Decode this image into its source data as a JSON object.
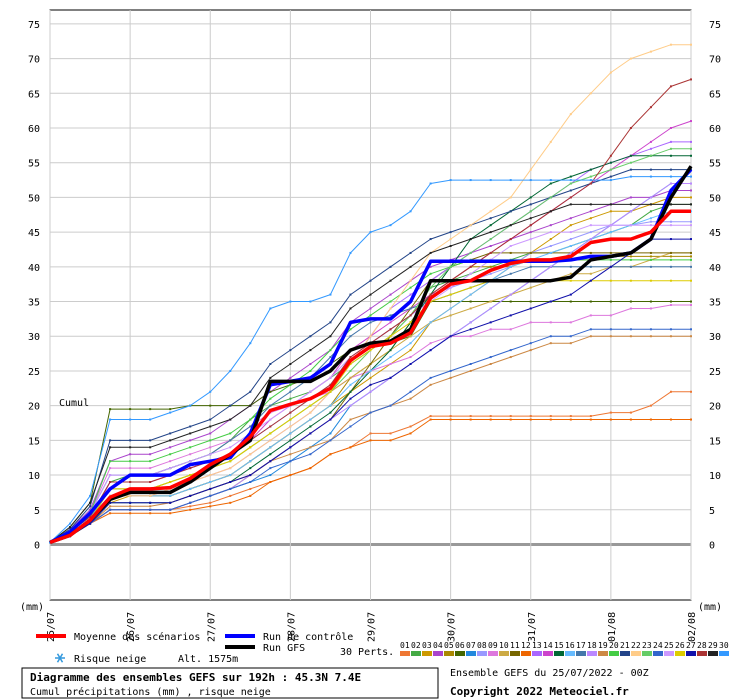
{
  "chart_data": {
    "type": "line",
    "title": "Diagramme des ensembles GEFS sur 192h : 45.3N 7.4E",
    "subtitle": "Cumul précipitations (mm) , risque neige",
    "ylabel": "(mm)",
    "ylabel_right": "(mm)",
    "series_label": "Cumul",
    "ylim": [
      -8,
      77
    ],
    "yticks": [
      0,
      5,
      10,
      15,
      20,
      25,
      30,
      35,
      40,
      45,
      50,
      55,
      60,
      65,
      70,
      75
    ],
    "xlim": [
      0,
      32
    ],
    "x_ticks": [
      {
        "x": 0,
        "label": "25/07"
      },
      {
        "x": 4,
        "label": "26/07"
      },
      {
        "x": 8,
        "label": "27/07"
      },
      {
        "x": 12,
        "label": "28/07"
      },
      {
        "x": 16,
        "label": "29/07"
      },
      {
        "x": 20,
        "label": "30/07"
      },
      {
        "x": 24,
        "label": "31/07"
      },
      {
        "x": 28,
        "label": "01/08"
      },
      {
        "x": 32,
        "label": "02/08"
      }
    ],
    "x_step": "6h",
    "grid": true,
    "legend": {
      "mean": "Moyenne des scénarios",
      "control": "Run de contrôle",
      "gfs": "Run GFS",
      "snow": "Risque neige",
      "altitude": "Alt. 1575m",
      "perts": "30 Perts."
    },
    "colors": {
      "mean": "#ff0000",
      "control": "#0000ff",
      "gfs": "#000000",
      "perts": [
        "#ee7733",
        "#44aa44",
        "#cc9900",
        "#aa44cc",
        "#aa8800",
        "#446600",
        "#2288dd",
        "#9999ff",
        "#dd77dd",
        "#ccaa44",
        "#776600",
        "#ee6600",
        "#aa66ff",
        "#cc44cc",
        "#006633",
        "#66bbff",
        "#4477aa",
        "#bb88ff",
        "#cc8844",
        "#44cc44",
        "#224488",
        "#ffcc88",
        "#66cc66",
        "#3366cc",
        "#cc99ff",
        "#ddcc00",
        "#1111aa",
        "#aa3333",
        "#222222",
        "#3399ff"
      ]
    },
    "mean": [
      0.3,
      1.3,
      3.5,
      6.8,
      8,
      8,
      8.2,
      9.5,
      11.5,
      13,
      15.5,
      19.3,
      20.2,
      21,
      22.5,
      26.5,
      28.5,
      29,
      30.5,
      35.5,
      37.5,
      38,
      39.5,
      40.5,
      41,
      41,
      41.5,
      43.5,
      44,
      44,
      45,
      48,
      48
    ],
    "control": [
      0.3,
      1.8,
      4.5,
      8,
      10,
      10,
      10,
      11.5,
      12,
      12.5,
      16,
      23,
      23.5,
      24,
      26,
      32,
      32.5,
      32.5,
      35,
      40.8,
      40.8,
      40.8,
      40.8,
      40.8,
      40.8,
      40.8,
      41,
      41.5,
      41.5,
      42,
      44,
      51,
      54
    ],
    "gfs": [
      0.3,
      1.3,
      3.5,
      6.5,
      7.5,
      7.5,
      7.5,
      9,
      11,
      13,
      15,
      23.5,
      23.5,
      23.5,
      25,
      28,
      29,
      29.3,
      31,
      38,
      38,
      38,
      38,
      38,
      38,
      38,
      38.5,
      41,
      41.5,
      42,
      44,
      50,
      54.5
    ],
    "perts": [
      [
        0.3,
        1.5,
        3,
        5,
        5,
        5,
        5,
        5.5,
        6,
        7,
        8,
        9,
        10,
        11,
        13,
        14,
        16,
        16,
        17,
        18.5,
        18.5,
        18.5,
        18.5,
        18.5,
        18.5,
        18.5,
        18.5,
        18.5,
        19,
        19,
        20,
        22,
        22
      ],
      [
        0.3,
        1.8,
        4,
        9,
        10,
        10,
        11,
        12,
        13,
        15,
        18,
        20,
        21,
        22,
        24,
        26,
        28,
        30,
        33,
        37,
        38,
        39,
        40,
        41,
        42,
        42,
        43,
        44,
        45,
        46,
        48,
        49,
        49
      ],
      [
        0.3,
        1.5,
        3.5,
        6,
        7,
        7,
        7,
        8,
        9,
        10,
        12,
        14,
        16,
        18,
        20,
        22,
        24,
        26,
        28,
        32,
        34,
        36,
        38,
        40,
        42,
        44,
        46,
        47,
        48,
        48,
        49,
        50,
        50
      ],
      [
        0.3,
        2.2,
        5,
        12,
        13,
        13,
        14,
        15,
        16,
        18,
        20,
        22,
        24,
        26,
        28,
        32,
        34,
        36,
        38,
        40,
        41,
        42,
        43,
        44,
        45,
        46,
        47,
        48,
        49,
        50,
        50,
        51,
        51
      ],
      [
        0.3,
        1.2,
        3,
        7,
        7,
        7,
        7,
        8,
        9,
        10,
        12,
        14,
        16,
        18,
        20,
        24,
        26,
        28,
        32,
        36,
        38,
        40,
        40,
        40,
        41,
        41,
        41,
        41,
        41.5,
        41.5,
        41.5,
        41.5,
        41.5
      ],
      [
        0.3,
        2.5,
        6,
        19.5,
        19.5,
        19.5,
        19.5,
        20,
        20,
        20,
        20,
        22,
        23,
        24,
        26,
        28,
        29,
        29,
        30,
        35,
        35,
        35,
        35,
        35,
        35,
        35,
        35,
        35,
        35,
        35,
        35,
        35,
        35
      ],
      [
        0.3,
        1.5,
        3,
        5,
        5,
        5,
        5,
        6,
        7,
        8,
        9,
        10,
        12,
        14,
        16,
        20,
        22,
        24,
        26,
        28,
        30,
        32,
        34,
        36,
        38,
        40,
        42,
        44,
        46,
        48,
        50,
        52,
        52
      ],
      [
        0.3,
        1.8,
        4,
        9,
        9,
        9,
        10,
        11,
        12,
        13,
        15,
        17,
        19,
        21,
        23,
        27,
        29,
        31,
        33,
        36,
        37,
        38,
        39,
        40,
        42,
        43,
        44,
        45,
        46,
        46,
        46.5,
        46.5,
        46.5
      ],
      [
        0.3,
        2,
        4.5,
        11,
        11,
        11,
        12,
        13,
        14,
        15,
        17,
        19,
        20,
        21,
        22,
        24,
        25,
        26,
        27,
        29,
        30,
        30,
        31,
        31,
        32,
        32,
        32,
        33,
        33,
        34,
        34,
        34.5,
        34.5
      ],
      [
        0.3,
        1.5,
        3.5,
        8,
        8,
        8,
        9,
        10,
        11,
        12,
        14,
        16,
        18,
        20,
        22,
        24,
        26,
        28,
        30,
        32,
        33,
        34,
        35,
        36,
        37,
        38,
        39,
        39,
        40,
        40,
        41,
        42,
        42
      ],
      [
        0.3,
        1.2,
        3,
        5,
        5,
        5,
        5,
        6,
        7,
        8,
        10,
        12,
        14,
        16,
        18,
        22,
        26,
        30,
        34,
        38,
        40,
        41,
        42,
        42,
        42,
        42,
        42,
        42,
        42,
        42,
        42,
        42,
        42
      ],
      [
        0.3,
        1.5,
        3,
        4.5,
        4.5,
        4.5,
        4.5,
        5,
        5.5,
        6,
        7,
        9,
        10,
        11,
        13,
        14,
        15,
        15,
        16,
        18,
        18,
        18,
        18,
        18,
        18,
        18,
        18,
        18,
        18,
        18,
        18,
        18,
        18
      ],
      [
        0.3,
        1.8,
        4,
        7,
        7,
        7,
        8,
        9,
        10,
        11,
        13,
        15,
        17,
        19,
        22,
        26,
        30,
        34,
        36,
        38,
        40,
        42,
        44,
        46,
        48,
        50,
        52,
        54,
        55,
        56,
        57,
        58,
        58
      ],
      [
        0.3,
        1.5,
        3.5,
        9,
        9,
        9,
        10,
        11,
        12,
        13,
        15,
        18,
        20,
        22,
        24,
        28,
        30,
        32,
        34,
        36,
        38,
        40,
        42,
        44,
        46,
        48,
        50,
        52,
        54,
        56,
        58,
        60,
        61
      ],
      [
        0.3,
        1.2,
        3,
        6,
        6,
        6,
        6,
        7,
        8,
        9,
        11,
        13,
        15,
        17,
        19,
        22,
        25,
        28,
        32,
        36,
        40,
        44,
        46,
        48,
        50,
        52,
        53,
        54,
        55,
        56,
        56,
        56,
        56
      ],
      [
        0.3,
        1.8,
        4,
        7,
        7,
        7,
        7,
        8,
        9,
        10,
        12,
        14,
        16,
        18,
        20,
        23,
        25,
        27,
        29,
        32,
        34,
        36,
        38,
        40,
        41,
        42,
        43,
        44,
        45,
        46,
        47,
        48,
        48
      ],
      [
        0.3,
        2,
        4.5,
        10,
        10,
        10,
        11,
        12,
        13,
        15,
        17,
        20,
        22,
        24,
        27,
        30,
        32,
        33,
        34,
        35,
        36,
        37,
        38,
        39,
        40,
        40,
        40,
        40,
        40,
        40,
        40,
        40,
        40
      ],
      [
        0.3,
        1.5,
        3,
        5,
        5,
        5,
        5,
        6,
        7,
        8,
        10,
        12,
        14,
        16,
        18,
        20,
        22,
        24,
        26,
        28,
        30,
        32,
        34,
        36,
        38,
        40,
        42,
        44,
        46,
        48,
        50,
        52,
        52
      ],
      [
        0.3,
        1.2,
        3,
        5.5,
        5.5,
        5.5,
        6,
        7,
        8,
        9,
        10,
        12,
        13,
        14,
        15,
        18,
        19,
        20,
        21,
        23,
        24,
        25,
        26,
        27,
        28,
        29,
        29,
        30,
        30,
        30,
        30,
        30,
        30
      ],
      [
        0.3,
        1.8,
        4.5,
        12,
        12,
        12,
        13,
        14,
        15,
        16,
        18,
        21,
        23,
        25,
        28,
        31,
        33,
        35,
        37,
        39,
        40,
        41,
        41,
        41,
        41,
        41,
        41,
        41,
        41,
        41,
        41,
        41,
        41
      ],
      [
        0.3,
        2.2,
        5.5,
        15,
        15,
        15,
        16,
        17,
        18,
        20,
        22,
        26,
        28,
        30,
        32,
        36,
        38,
        40,
        42,
        44,
        45,
        46,
        47,
        48,
        49,
        50,
        51,
        52,
        53,
        54,
        54,
        54,
        54
      ],
      [
        0.3,
        1.5,
        3.5,
        7,
        7,
        7,
        8,
        9,
        10,
        11,
        13,
        15,
        17,
        19,
        22,
        26,
        30,
        34,
        38,
        42,
        44,
        46,
        48,
        50,
        54,
        58,
        62,
        65,
        68,
        70,
        71,
        72,
        72
      ],
      [
        0.3,
        1.8,
        4,
        8,
        8,
        8,
        9,
        10,
        11,
        12,
        14,
        16,
        18,
        20,
        22,
        25,
        28,
        30,
        33,
        37,
        40,
        42,
        44,
        46,
        48,
        50,
        52,
        53,
        54,
        55,
        56,
        57,
        57
      ],
      [
        0.3,
        1.5,
        3,
        5,
        5,
        5,
        5,
        6,
        7,
        8,
        9,
        11,
        12,
        13,
        15,
        17,
        19,
        20,
        22,
        24,
        25,
        26,
        27,
        28,
        29,
        30,
        30,
        31,
        31,
        31,
        31,
        31,
        31
      ],
      [
        0.3,
        2,
        4.5,
        10,
        10,
        10,
        11,
        12,
        13,
        14,
        16,
        18,
        20,
        22,
        24,
        27,
        29,
        31,
        33,
        35,
        37,
        39,
        41,
        43,
        44,
        45,
        45,
        46,
        46,
        46,
        46,
        46,
        46
      ],
      [
        0.3,
        1.5,
        3.5,
        8,
        8,
        8,
        9,
        10,
        11,
        12,
        14,
        16,
        18,
        20,
        22,
        26,
        28,
        30,
        32,
        35,
        36,
        37,
        38,
        38,
        38,
        38,
        38,
        38,
        38,
        38,
        38,
        38,
        38
      ],
      [
        0.3,
        1.2,
        3,
        6,
        6,
        6,
        6,
        7,
        8,
        9,
        10,
        12,
        14,
        16,
        18,
        21,
        23,
        24,
        26,
        28,
        30,
        31,
        32,
        33,
        34,
        35,
        36,
        38,
        40,
        42,
        44,
        44,
        44
      ],
      [
        0.3,
        1.8,
        4,
        9,
        9,
        9,
        10,
        11,
        12,
        13,
        15,
        17,
        19,
        21,
        23,
        27,
        29,
        31,
        33,
        36,
        38,
        40,
        42,
        44,
        46,
        48,
        50,
        52,
        56,
        60,
        63,
        66,
        67
      ],
      [
        0.3,
        2.5,
        6,
        14,
        14,
        14,
        15,
        16,
        17,
        18,
        20,
        24,
        26,
        28,
        30,
        34,
        36,
        38,
        40,
        42,
        43,
        44,
        45,
        46,
        47,
        48,
        49,
        49,
        49,
        49,
        49,
        49,
        49
      ],
      [
        0.3,
        3,
        7,
        18,
        18,
        18,
        19,
        20,
        22,
        25,
        29,
        34,
        35,
        35,
        36,
        42,
        45,
        46,
        48,
        52,
        52.5,
        52.5,
        52.5,
        52.5,
        52.5,
        52.5,
        52.5,
        52.5,
        52.5,
        53,
        53,
        53,
        53
      ]
    ]
  },
  "labels": {
    "y_unit_left": "(mm)",
    "y_unit_right": "(mm)",
    "cumul": "Cumul",
    "footer_title": "Diagramme des ensembles GEFS sur 192h : 45.3N 7.4E",
    "footer_subtitle": "Cumul précipitations (mm) , risque neige",
    "run_info": "Ensemble GEFS du 25/07/2022 - 00Z",
    "copyright": "Copyright 2022 Meteociel.fr",
    "pert_numbers": [
      "01",
      "02",
      "03",
      "04",
      "05",
      "06",
      "07",
      "08",
      "09",
      "10",
      "11",
      "12",
      "13",
      "14",
      "15",
      "16",
      "17",
      "18",
      "19",
      "20",
      "21",
      "22",
      "23",
      "24",
      "25",
      "26",
      "27",
      "28",
      "29",
      "30"
    ]
  }
}
